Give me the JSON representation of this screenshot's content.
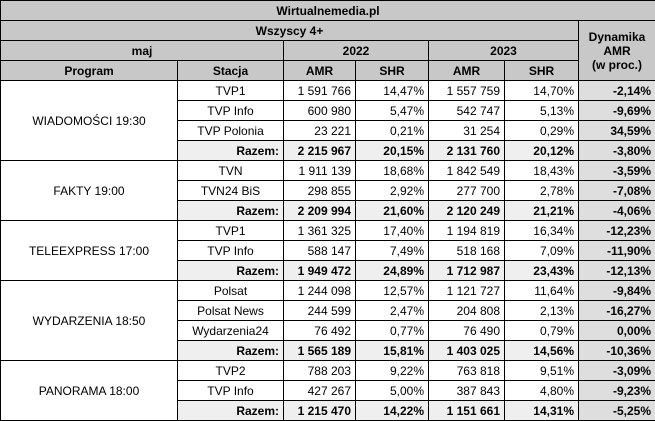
{
  "header": {
    "title": "Wirtualnemedia.pl",
    "audience": "Wszyscy 4+",
    "month": "maj",
    "years": [
      "2022",
      "2023"
    ],
    "change": "Dynamika\nAMR\n(w proc.)",
    "columns": [
      "Program",
      "Stacja",
      "AMR",
      "SHR",
      "AMR",
      "SHR"
    ]
  },
  "groups": [
    {
      "program": "WIADOMOŚCI 19:30",
      "rows": [
        [
          "TVP1",
          "1 591 766",
          "14,47%",
          "1 557 759",
          "14,70%",
          "-2,14%"
        ],
        [
          "TVP Info",
          "600 980",
          "5,47%",
          "542 747",
          "5,13%",
          "-9,69%"
        ],
        [
          "TVP Polonia",
          "23 221",
          "0,21%",
          "31 254",
          "0,29%",
          "34,59%"
        ]
      ],
      "total": [
        "Razem:",
        "2 215 967",
        "20,15%",
        "2 131 760",
        "20,12%",
        "-3,80%"
      ]
    },
    {
      "program": "FAKTY 19:00",
      "rows": [
        [
          "TVN",
          "1 911 139",
          "18,68%",
          "1 842 549",
          "18,43%",
          "-3,59%"
        ],
        [
          "TVN24 BiS",
          "298 855",
          "2,92%",
          "277 700",
          "2,78%",
          "-7,08%"
        ]
      ],
      "total": [
        "Razem:",
        "2 209 994",
        "21,60%",
        "2 120 249",
        "21,21%",
        "-4,06%"
      ]
    },
    {
      "program": "TELEEXPRESS 17:00",
      "rows": [
        [
          "TVP1",
          "1 361 325",
          "17,40%",
          "1 194 819",
          "16,34%",
          "-12,23%"
        ],
        [
          "TVP Info",
          "588 147",
          "7,49%",
          "518 168",
          "7,09%",
          "-11,90%"
        ]
      ],
      "total": [
        "Razem:",
        "1 949 472",
        "24,89%",
        "1 712 987",
        "23,43%",
        "-12,13%"
      ]
    },
    {
      "program": "WYDARZENIA 18:50",
      "rows": [
        [
          "Polsat",
          "1 244 098",
          "12,57%",
          "1 121 727",
          "11,64%",
          "-9,84%"
        ],
        [
          "Polsat News",
          "244 599",
          "2,47%",
          "204 808",
          "2,13%",
          "-16,27%"
        ],
        [
          "Wydarzenia24",
          "76 492",
          "0,77%",
          "76 490",
          "0,79%",
          "0,00%"
        ]
      ],
      "total": [
        "Razem:",
        "1 565 189",
        "15,81%",
        "1 403 025",
        "14,56%",
        "-10,36%"
      ]
    },
    {
      "program": "PANORAMA 18:00",
      "rows": [
        [
          "TVP2",
          "788 203",
          "9,22%",
          "763 818",
          "9,51%",
          "-3,09%"
        ],
        [
          "TVP Info",
          "427 267",
          "5,00%",
          "387 843",
          "4,80%",
          "-9,23%"
        ]
      ],
      "total": [
        "Razem:",
        "1 215 470",
        "14,22%",
        "1 151 661",
        "14,31%",
        "-5,25%"
      ]
    }
  ]
}
